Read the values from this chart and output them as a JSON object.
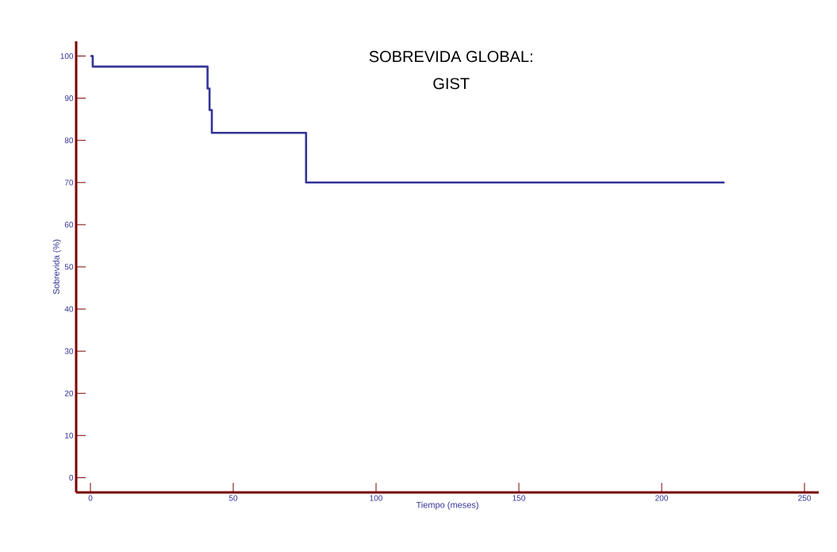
{
  "chart_data": {
    "type": "step",
    "title": "SOBREVIDA GLOBAL:",
    "subtitle": "GIST",
    "xlabel": "Tiempo (meses)",
    "ylabel": "Sobrevida (%)",
    "x": [
      0,
      0.8,
      41.0,
      41.7,
      42.5,
      75.5,
      222
    ],
    "series": [
      {
        "color": "#333399",
        "values": [
          100,
          97.5,
          92.3,
          87.2,
          81.8,
          70,
          70
        ]
      }
    ],
    "xlim": [
      -5,
      255
    ],
    "ylim": [
      -3.5,
      103.5
    ],
    "xticks": [
      0,
      50,
      100,
      150,
      200,
      250
    ],
    "yticks": [
      0,
      10,
      20,
      30,
      40,
      50,
      60,
      70,
      80,
      90,
      100
    ],
    "grid": false
  }
}
